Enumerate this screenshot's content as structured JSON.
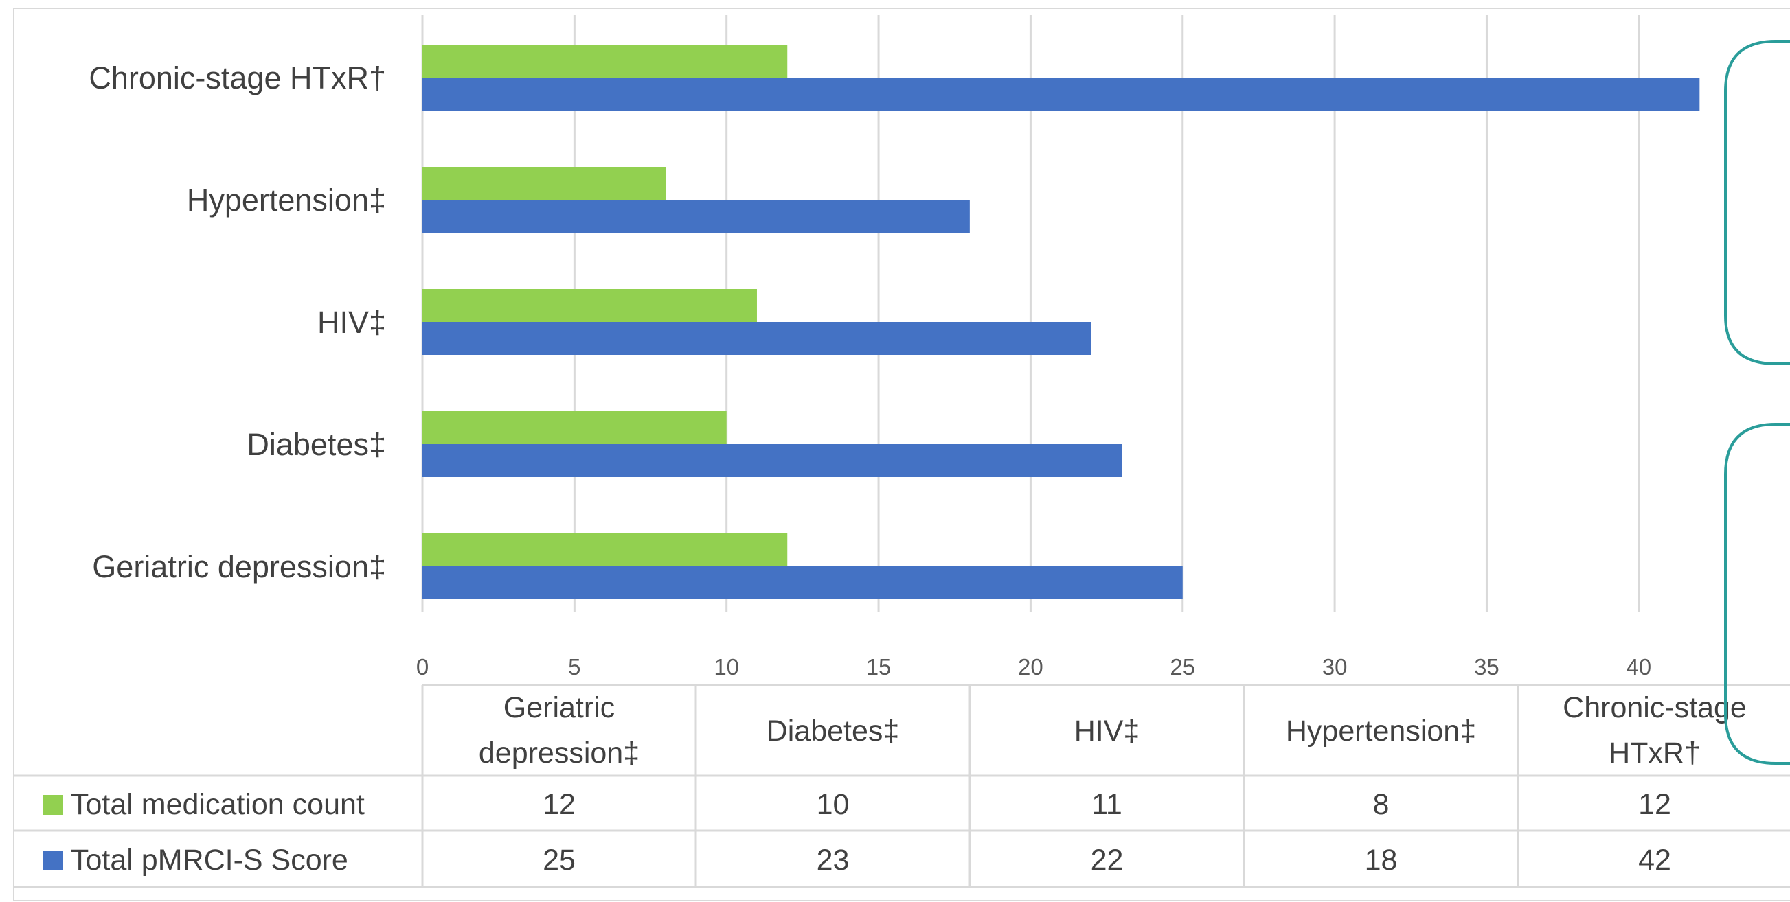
{
  "chart_data": {
    "type": "bar",
    "orientation": "horizontal",
    "categories": [
      "Geriatric depression‡",
      "Diabetes‡",
      "HIV‡",
      "Hypertension‡",
      "Chronic-stage HTxR†"
    ],
    "series": [
      {
        "name": "Total medication count",
        "values": [
          12,
          10,
          11,
          8,
          12
        ],
        "color": "#92D050"
      },
      {
        "name": "Total pMRCI-S Score",
        "values": [
          25,
          23,
          22,
          18,
          42
        ],
        "color": "#4472C4"
      }
    ],
    "xticks": [
      0,
      5,
      10,
      15,
      20,
      25,
      30,
      35,
      40
    ],
    "xlim": [
      0,
      45
    ],
    "grid": true,
    "legend": "data-table",
    "table_header": [
      "Geriatric\ndepression‡",
      "Diabetes‡",
      "HIV‡",
      "Hypertension‡",
      "Chronic-stage\nHTxR†"
    ]
  }
}
